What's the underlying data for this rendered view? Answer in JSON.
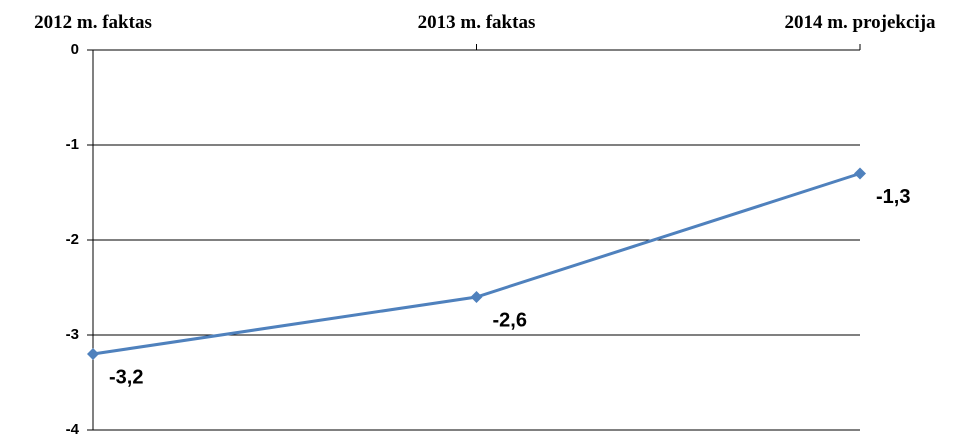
{
  "chart_data": {
    "type": "line",
    "categories": [
      "2012 m. faktas",
      "2013 m. faktas",
      "2014 m. projekcija"
    ],
    "series": [
      {
        "color": "#4f81bd",
        "values": [
          -3.2,
          -2.6,
          -1.3
        ],
        "value_labels": [
          "-3,2",
          "-2,6",
          "-1,3"
        ]
      }
    ],
    "ylim": [
      -4,
      0
    ],
    "yticks": [
      0,
      -1,
      -2,
      -3,
      -4
    ],
    "grid": true
  }
}
